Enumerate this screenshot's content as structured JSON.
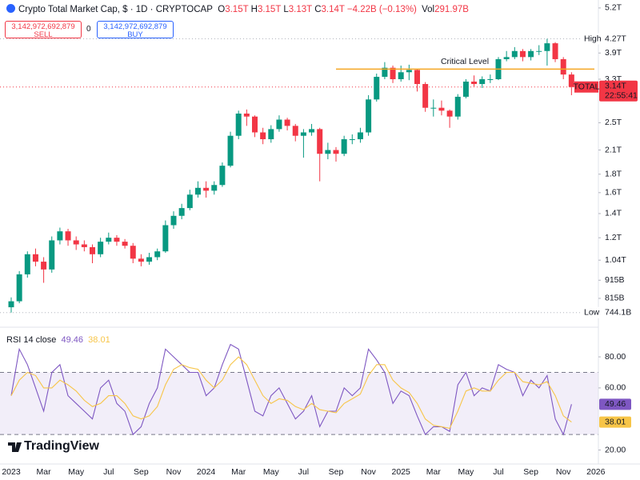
{
  "header": {
    "ohlc": [
      {
        "label": "O",
        "value": "3.15T"
      },
      {
        "label": "H",
        "value": "3.15T"
      },
      {
        "label": "L",
        "value": "3.13T"
      },
      {
        "label": "C",
        "value": "3.14T"
      }
    ],
    "change": "−4.22B (−0.13%)",
    "volume": {
      "label": "Vol",
      "value": "291.97B"
    }
  },
  "trade": {
    "sell": {
      "price": "3,142,972,692,879",
      "label": "SELL"
    },
    "spread": "0",
    "buy": {
      "price": "3,142,972,692,879",
      "label": "BUY"
    }
  },
  "brand": "TradingView",
  "chart_data": [
    {
      "type": "candlestick",
      "title": "Crypto Total Market Cap, $ · 1D · CRYPTOCAP",
      "log_scale": true,
      "categories": [
        "2023",
        null,
        null,
        null,
        "Mar",
        null,
        null,
        null,
        "May",
        null,
        null,
        null,
        "Jul",
        null,
        null,
        null,
        "Sep",
        null,
        null,
        null,
        "Nov",
        null,
        null,
        null,
        "2024",
        null,
        null,
        null,
        "Mar",
        null,
        null,
        null,
        "May",
        null,
        null,
        null,
        "Jul",
        null,
        null,
        null,
        "Sep",
        null,
        null,
        null,
        "Nov",
        null,
        null,
        null,
        "2025",
        null,
        null,
        null,
        "Mar",
        null,
        null,
        null,
        "May",
        null,
        null,
        null,
        "Jul",
        null,
        null,
        null,
        "Sep",
        null,
        null,
        null,
        "Nov",
        null,
        null,
        null,
        "2026"
      ],
      "series": [
        {
          "name": "TOTAL",
          "up_color": "#089981",
          "down_color": "#f23645",
          "open": [
            0.77,
            0.8,
            0.95,
            1.08,
            1.03,
            0.98,
            1.18,
            1.25,
            1.18,
            1.15,
            1.13,
            1.08,
            1.17,
            1.2,
            1.17,
            1.14,
            1.05,
            1.03,
            1.06,
            1.1,
            1.3,
            1.38,
            1.45,
            1.58,
            1.65,
            1.62,
            1.68,
            1.9,
            2.3,
            2.65,
            2.6,
            2.35,
            2.25,
            2.4,
            2.55,
            2.45,
            2.3,
            2.35,
            2.4,
            2.05,
            2.1,
            2.05,
            2.25,
            2.25,
            2.35,
            2.9,
            3.35,
            3.55,
            3.3,
            3.45,
            3.5,
            3.2,
            2.75,
            2.75,
            2.7,
            2.6,
            2.95,
            3.25,
            3.2,
            3.3,
            3.3,
            3.75,
            3.8,
            3.95,
            3.8,
            3.95,
            3.95,
            4.15,
            3.75,
            3.4,
            null,
            null,
            null
          ],
          "high": [
            0.82,
            0.97,
            1.1,
            1.12,
            1.06,
            1.21,
            1.28,
            1.27,
            1.21,
            1.18,
            1.15,
            1.2,
            1.24,
            1.22,
            1.19,
            1.16,
            1.08,
            1.09,
            1.12,
            1.34,
            1.42,
            1.49,
            1.63,
            1.72,
            1.72,
            1.72,
            1.94,
            2.36,
            2.7,
            2.72,
            2.62,
            2.42,
            2.46,
            2.62,
            2.58,
            2.48,
            2.4,
            2.48,
            2.42,
            2.2,
            2.14,
            2.3,
            2.32,
            2.42,
            2.98,
            3.42,
            3.68,
            3.6,
            3.6,
            3.62,
            3.52,
            3.24,
            2.9,
            2.88,
            2.72,
            3.0,
            3.3,
            3.38,
            3.36,
            3.4,
            3.8,
            3.95,
            4.05,
            4.0,
            4.0,
            4.1,
            4.27,
            4.18,
            3.8,
            3.45,
            null,
            null,
            null
          ],
          "low": [
            0.7441,
            0.79,
            0.93,
            1.0,
            0.9,
            0.96,
            1.15,
            1.14,
            1.11,
            1.1,
            1.02,
            1.06,
            1.15,
            1.14,
            1.12,
            1.02,
            1.0,
            1.01,
            1.04,
            1.09,
            1.27,
            1.35,
            1.43,
            1.55,
            1.55,
            1.58,
            1.66,
            1.88,
            2.25,
            2.45,
            2.28,
            2.18,
            2.2,
            2.36,
            2.38,
            2.22,
            2.0,
            2.3,
            1.72,
            1.98,
            1.95,
            2.02,
            2.18,
            2.2,
            2.3,
            2.86,
            3.3,
            3.22,
            3.25,
            3.28,
            3.05,
            2.68,
            2.6,
            2.62,
            2.42,
            2.55,
            2.92,
            3.15,
            3.12,
            3.22,
            3.28,
            3.7,
            3.75,
            3.7,
            3.72,
            3.85,
            3.6,
            3.68,
            3.3,
            2.98,
            null,
            null,
            null
          ],
          "close": [
            0.8,
            0.95,
            1.08,
            1.03,
            0.98,
            1.18,
            1.25,
            1.18,
            1.15,
            1.13,
            1.08,
            1.17,
            1.2,
            1.17,
            1.14,
            1.05,
            1.03,
            1.06,
            1.1,
            1.3,
            1.38,
            1.45,
            1.58,
            1.65,
            1.62,
            1.68,
            1.9,
            2.3,
            2.65,
            2.6,
            2.35,
            2.25,
            2.4,
            2.55,
            2.45,
            2.3,
            2.35,
            2.4,
            2.05,
            2.1,
            2.05,
            2.25,
            2.25,
            2.35,
            2.9,
            3.35,
            3.55,
            3.3,
            3.45,
            3.5,
            3.2,
            2.75,
            2.75,
            2.7,
            2.6,
            2.95,
            3.25,
            3.2,
            3.3,
            3.3,
            3.75,
            3.8,
            3.95,
            3.8,
            3.95,
            3.95,
            4.15,
            3.75,
            3.4,
            3.14,
            null,
            null,
            null
          ],
          "last_value_label": "3.14T",
          "countdown": "22:55:41"
        }
      ],
      "ylim": [
        0.692,
        5.47
      ],
      "yticks": [
        {
          "value": 5.2,
          "label": "5.2T"
        },
        {
          "value": 3.9,
          "label": "3.9T"
        },
        {
          "value": 3.3,
          "label": "3.3T"
        },
        {
          "value": 2.5,
          "label": "2.5T"
        },
        {
          "value": 2.1,
          "label": "2.1T"
        },
        {
          "value": 1.8,
          "label": "1.8T"
        },
        {
          "value": 1.6,
          "label": "1.6T"
        },
        {
          "value": 1.4,
          "label": "1.4T"
        },
        {
          "value": 1.2,
          "label": "1.2T"
        },
        {
          "value": 1.04,
          "label": "1.04T"
        },
        {
          "value": 0.915,
          "label": "915B"
        },
        {
          "value": 0.815,
          "label": "815B"
        }
      ],
      "grid": false,
      "annotations": [
        {
          "text": "Critical Level",
          "value": 3.52,
          "color": "#f5a623"
        }
      ],
      "extremes": [
        {
          "label": "High",
          "value": 4.27,
          "value_label": "4.27T"
        },
        {
          "label": "Low",
          "value": 0.7441,
          "value_label": "744.1B"
        }
      ]
    },
    {
      "type": "line",
      "title": "RSI 14 close",
      "series": [
        {
          "color": "#7e57c2",
          "values": [
            55,
            85,
            75,
            60,
            45,
            70,
            75,
            55,
            50,
            45,
            40,
            60,
            65,
            50,
            45,
            30,
            35,
            50,
            60,
            85,
            80,
            75,
            70,
            70,
            55,
            60,
            75,
            88,
            85,
            65,
            45,
            42,
            55,
            60,
            50,
            40,
            45,
            55,
            35,
            45,
            45,
            60,
            55,
            60,
            85,
            78,
            70,
            50,
            58,
            55,
            42,
            30,
            35,
            35,
            32,
            62,
            70,
            55,
            60,
            58,
            75,
            72,
            70,
            55,
            65,
            60,
            68,
            40,
            30,
            49.46,
            null,
            null,
            null
          ]
        },
        {
          "color": "#f7c548",
          "values": [
            55,
            65,
            70,
            68,
            60,
            60,
            65,
            62,
            58,
            52,
            48,
            50,
            55,
            55,
            50,
            42,
            40,
            42,
            48,
            62,
            72,
            75,
            73,
            72,
            65,
            60,
            65,
            75,
            80,
            75,
            65,
            55,
            50,
            53,
            52,
            48,
            46,
            50,
            46,
            45,
            44,
            50,
            53,
            56,
            68,
            75,
            75,
            65,
            60,
            57,
            50,
            40,
            36,
            35,
            34,
            45,
            58,
            60,
            58,
            58,
            65,
            70,
            70,
            64,
            63,
            62,
            64,
            55,
            42,
            38.01,
            null,
            null,
            null
          ]
        }
      ],
      "ylim": [
        11,
        96
      ],
      "yticks": [
        {
          "value": 80,
          "label": "80.00"
        },
        {
          "value": 60,
          "label": "60.00"
        },
        {
          "value": 20,
          "label": "20.00"
        }
      ],
      "bands": [
        30,
        70
      ],
      "band_color": "#7e57c2"
    }
  ]
}
